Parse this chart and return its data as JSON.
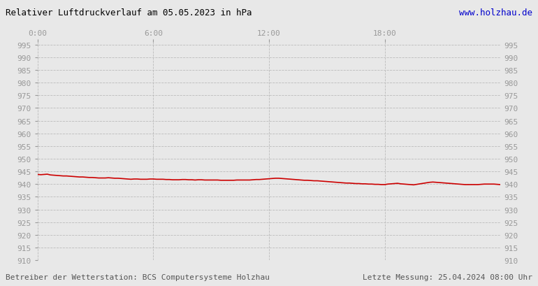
{
  "title": "Relativer Luftdruckverlauf am 05.05.2023 in hPa",
  "url_text": "www.holzhau.de",
  "footer_left": "Betreiber der Wetterstation: BCS Computersysteme Holzhau",
  "footer_right": "Letzte Messung: 25.04.2024 08:00 Uhr",
  "xlim": [
    0,
    1440
  ],
  "ylim": [
    910,
    997
  ],
  "yticks": [
    910,
    915,
    920,
    925,
    930,
    935,
    940,
    945,
    950,
    955,
    960,
    965,
    970,
    975,
    980,
    985,
    990,
    995
  ],
  "xticks": [
    0,
    360,
    720,
    1080
  ],
  "xticklabels": [
    "0:00",
    "6:00",
    "12:00",
    "18:00"
  ],
  "line_color": "#cc0000",
  "bg_color": "#e8e8e8",
  "grid_color": "#bbbbbb",
  "title_color": "#000000",
  "url_color": "#0000cc",
  "tick_color": "#999999",
  "footer_color": "#555555",
  "pressure_data": [
    [
      0,
      943.8
    ],
    [
      10,
      943.7
    ],
    [
      20,
      943.8
    ],
    [
      30,
      943.9
    ],
    [
      40,
      943.6
    ],
    [
      50,
      943.5
    ],
    [
      60,
      943.4
    ],
    [
      70,
      943.3
    ],
    [
      80,
      943.2
    ],
    [
      90,
      943.2
    ],
    [
      100,
      943.1
    ],
    [
      110,
      943.0
    ],
    [
      120,
      942.9
    ],
    [
      130,
      942.8
    ],
    [
      140,
      942.8
    ],
    [
      150,
      942.7
    ],
    [
      160,
      942.6
    ],
    [
      170,
      942.6
    ],
    [
      180,
      942.5
    ],
    [
      190,
      942.4
    ],
    [
      200,
      942.4
    ],
    [
      210,
      942.4
    ],
    [
      220,
      942.5
    ],
    [
      230,
      942.4
    ],
    [
      240,
      942.3
    ],
    [
      250,
      942.3
    ],
    [
      260,
      942.2
    ],
    [
      270,
      942.1
    ],
    [
      280,
      942.0
    ],
    [
      290,
      941.9
    ],
    [
      300,
      942.0
    ],
    [
      310,
      942.0
    ],
    [
      320,
      941.9
    ],
    [
      330,
      941.9
    ],
    [
      340,
      941.9
    ],
    [
      350,
      942.0
    ],
    [
      360,
      942.0
    ],
    [
      370,
      941.9
    ],
    [
      380,
      941.9
    ],
    [
      390,
      941.9
    ],
    [
      400,
      941.8
    ],
    [
      410,
      941.8
    ],
    [
      420,
      941.7
    ],
    [
      430,
      941.7
    ],
    [
      440,
      941.7
    ],
    [
      450,
      941.8
    ],
    [
      460,
      941.8
    ],
    [
      470,
      941.7
    ],
    [
      480,
      941.7
    ],
    [
      490,
      941.6
    ],
    [
      500,
      941.7
    ],
    [
      510,
      941.7
    ],
    [
      520,
      941.6
    ],
    [
      530,
      941.6
    ],
    [
      540,
      941.6
    ],
    [
      550,
      941.6
    ],
    [
      560,
      941.6
    ],
    [
      570,
      941.5
    ],
    [
      580,
      941.5
    ],
    [
      590,
      941.5
    ],
    [
      600,
      941.5
    ],
    [
      610,
      941.5
    ],
    [
      620,
      941.6
    ],
    [
      630,
      941.6
    ],
    [
      640,
      941.6
    ],
    [
      650,
      941.6
    ],
    [
      660,
      941.6
    ],
    [
      670,
      941.7
    ],
    [
      680,
      941.8
    ],
    [
      690,
      941.8
    ],
    [
      700,
      941.9
    ],
    [
      710,
      942.0
    ],
    [
      720,
      942.1
    ],
    [
      730,
      942.2
    ],
    [
      740,
      942.3
    ],
    [
      750,
      942.3
    ],
    [
      760,
      942.2
    ],
    [
      770,
      942.1
    ],
    [
      780,
      942.0
    ],
    [
      790,
      941.9
    ],
    [
      800,
      941.8
    ],
    [
      810,
      941.7
    ],
    [
      820,
      941.6
    ],
    [
      830,
      941.5
    ],
    [
      840,
      941.5
    ],
    [
      850,
      941.4
    ],
    [
      860,
      941.3
    ],
    [
      870,
      941.3
    ],
    [
      880,
      941.2
    ],
    [
      890,
      941.1
    ],
    [
      900,
      941.0
    ],
    [
      910,
      940.9
    ],
    [
      920,
      940.8
    ],
    [
      930,
      940.7
    ],
    [
      940,
      940.6
    ],
    [
      950,
      940.5
    ],
    [
      960,
      940.4
    ],
    [
      970,
      940.4
    ],
    [
      980,
      940.3
    ],
    [
      990,
      940.2
    ],
    [
      1000,
      940.2
    ],
    [
      1010,
      940.1
    ],
    [
      1020,
      940.1
    ],
    [
      1030,
      940.0
    ],
    [
      1040,
      940.0
    ],
    [
      1050,
      939.9
    ],
    [
      1060,
      939.9
    ],
    [
      1070,
      939.8
    ],
    [
      1080,
      939.8
    ],
    [
      1090,
      940.0
    ],
    [
      1100,
      940.1
    ],
    [
      1110,
      940.2
    ],
    [
      1120,
      940.3
    ],
    [
      1130,
      940.1
    ],
    [
      1140,
      940.0
    ],
    [
      1150,
      939.9
    ],
    [
      1160,
      939.8
    ],
    [
      1170,
      939.7
    ],
    [
      1180,
      939.9
    ],
    [
      1190,
      940.1
    ],
    [
      1200,
      940.3
    ],
    [
      1210,
      940.5
    ],
    [
      1220,
      940.7
    ],
    [
      1230,
      940.8
    ],
    [
      1240,
      940.7
    ],
    [
      1250,
      940.6
    ],
    [
      1260,
      940.5
    ],
    [
      1270,
      940.4
    ],
    [
      1280,
      940.3
    ],
    [
      1290,
      940.2
    ],
    [
      1300,
      940.1
    ],
    [
      1310,
      940.0
    ],
    [
      1320,
      939.9
    ],
    [
      1330,
      939.8
    ],
    [
      1340,
      939.8
    ],
    [
      1350,
      939.8
    ],
    [
      1360,
      939.8
    ],
    [
      1370,
      939.8
    ],
    [
      1380,
      939.9
    ],
    [
      1390,
      940.0
    ],
    [
      1400,
      940.0
    ],
    [
      1410,
      940.0
    ],
    [
      1420,
      940.0
    ],
    [
      1430,
      939.9
    ],
    [
      1440,
      939.8
    ]
  ]
}
